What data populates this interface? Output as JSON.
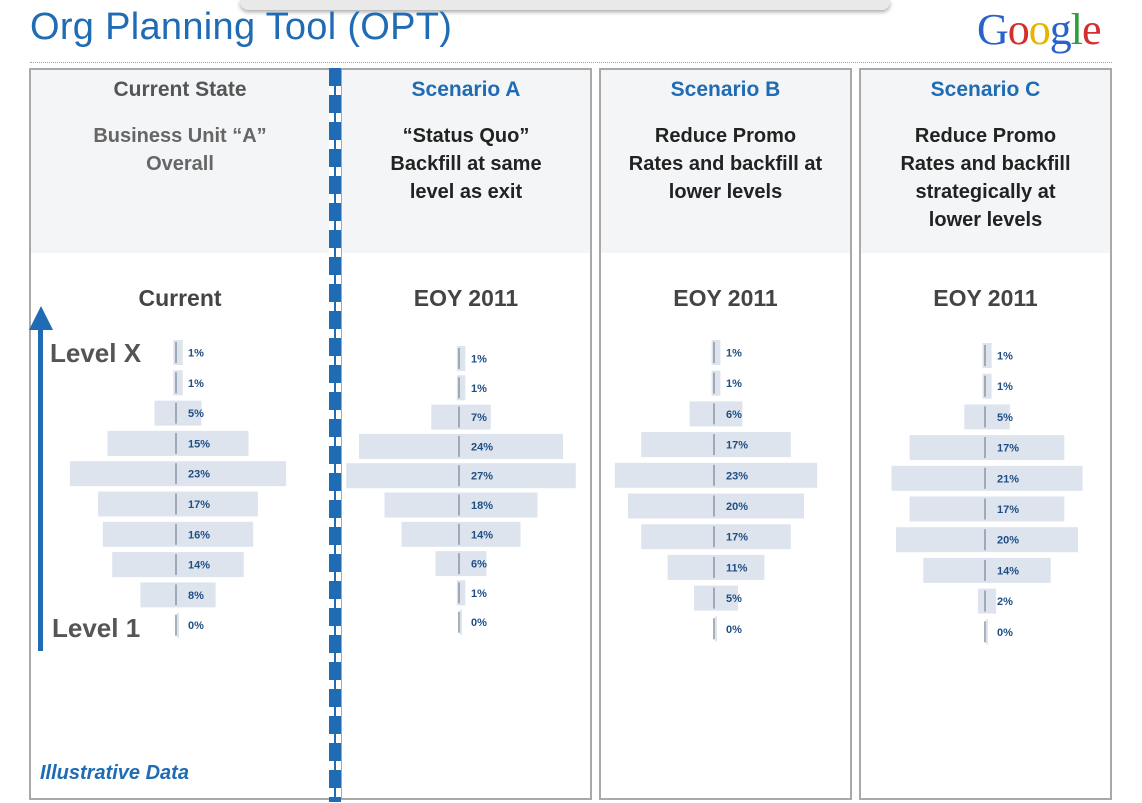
{
  "title": "Org Planning Tool (OPT)",
  "logo": "Google",
  "footer_note": "Illustrative Data",
  "axis": {
    "top_label": "Level X",
    "bottom_label": "Level 1"
  },
  "panels": [
    {
      "heading": "Current State",
      "description": [
        "Business Unit “A”",
        "Overall"
      ],
      "sublabel": "Current"
    },
    {
      "heading": "Scenario A",
      "description": [
        "“Status Quo”",
        "Backfill at same",
        "level as exit"
      ],
      "sublabel": "EOY 2011"
    },
    {
      "heading": "Scenario B",
      "description": [
        "Reduce Promo",
        "Rates and backfill at",
        "lower levels"
      ],
      "sublabel": "EOY 2011"
    },
    {
      "heading": "Scenario C",
      "description": [
        "Reduce Promo",
        "Rates and backfill",
        "strategically at",
        "lower levels"
      ],
      "sublabel": "EOY 2011"
    }
  ],
  "colors": {
    "accent": "#1f6bb4",
    "bar": "#dde4ee",
    "current_heading": "#555555"
  },
  "chart_data": [
    {
      "type": "bar",
      "title": "Current",
      "categories": [
        "Level X",
        "",
        "",
        "",
        "",
        "",
        "",
        "",
        "",
        "Level 1"
      ],
      "values": [
        1,
        1,
        5,
        15,
        23,
        17,
        16,
        14,
        8,
        0
      ],
      "labels": [
        "1%",
        "1%",
        "5%",
        "15%",
        "23%",
        "17%",
        "16%",
        "14%",
        "8%",
        "0%"
      ]
    },
    {
      "type": "bar",
      "title": "EOY 2011",
      "categories": [
        "Level X",
        "",
        "",
        "",
        "",
        "",
        "",
        "",
        "",
        "Level 1"
      ],
      "values": [
        1,
        1,
        7,
        24,
        27,
        18,
        14,
        6,
        1,
        0
      ],
      "labels": [
        "1%",
        "1%",
        "7%",
        "24%",
        "27%",
        "18%",
        "14%",
        "6%",
        "1%",
        "0%"
      ]
    },
    {
      "type": "bar",
      "title": "EOY 2011",
      "categories": [
        "Level X",
        "",
        "",
        "",
        "",
        "",
        "",
        "",
        "",
        "Level 1"
      ],
      "values": [
        1,
        1,
        6,
        17,
        23,
        20,
        17,
        11,
        5,
        0
      ],
      "labels": [
        "1%",
        "1%",
        "6%",
        "17%",
        "23%",
        "20%",
        "17%",
        "11%",
        "5%",
        "0%"
      ]
    },
    {
      "type": "bar",
      "title": "EOY 2011",
      "categories": [
        "Level X",
        "",
        "",
        "",
        "",
        "",
        "",
        "",
        "",
        "Level 1"
      ],
      "values": [
        1,
        1,
        5,
        17,
        21,
        17,
        20,
        14,
        2,
        0
      ],
      "labels": [
        "1%",
        "1%",
        "5%",
        "17%",
        "21%",
        "17%",
        "20%",
        "14%",
        "2%",
        "0%"
      ]
    }
  ]
}
